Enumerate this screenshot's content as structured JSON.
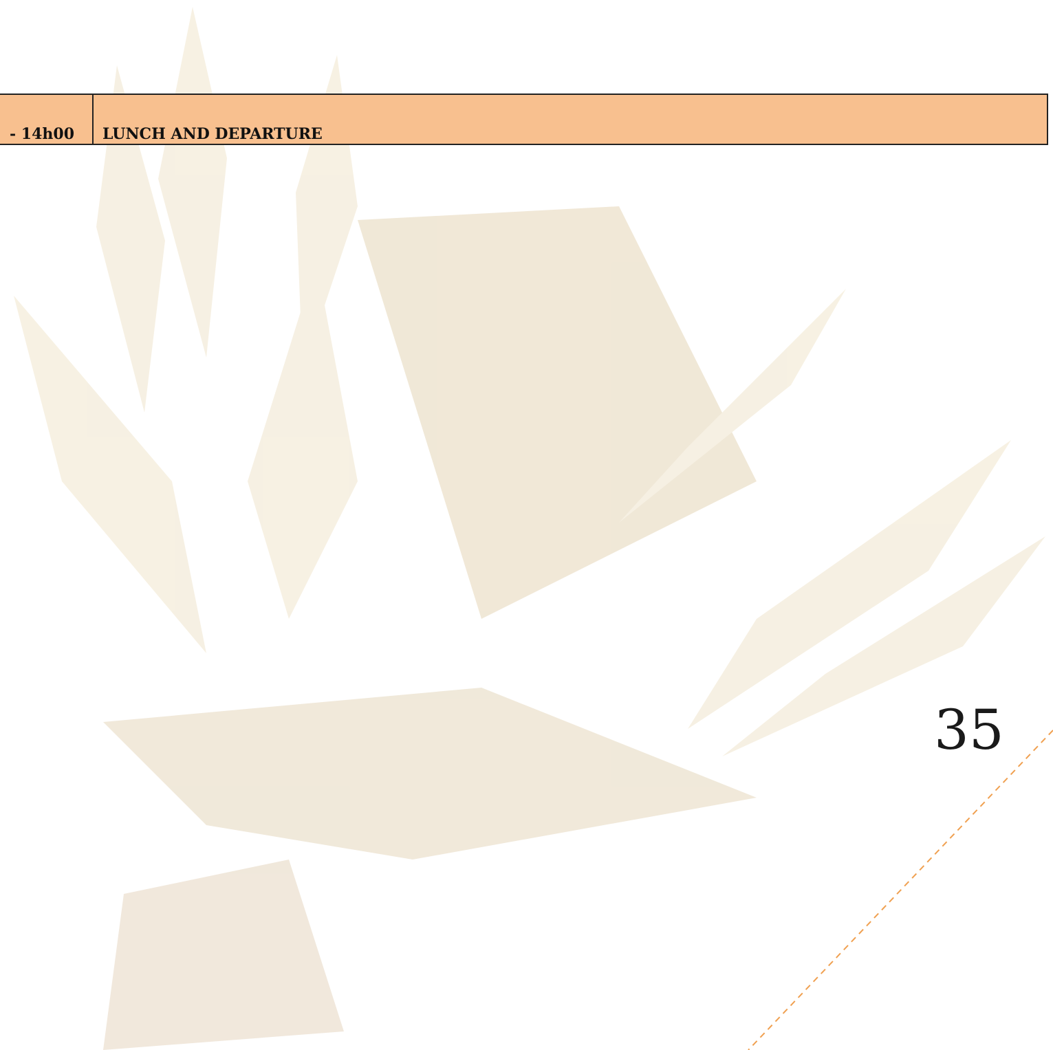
{
  "table": {
    "rows": [
      [
        "- 14h00",
        "LUNCH AND DEPARTURE"
      ]
    ]
  },
  "page_number": "35"
}
